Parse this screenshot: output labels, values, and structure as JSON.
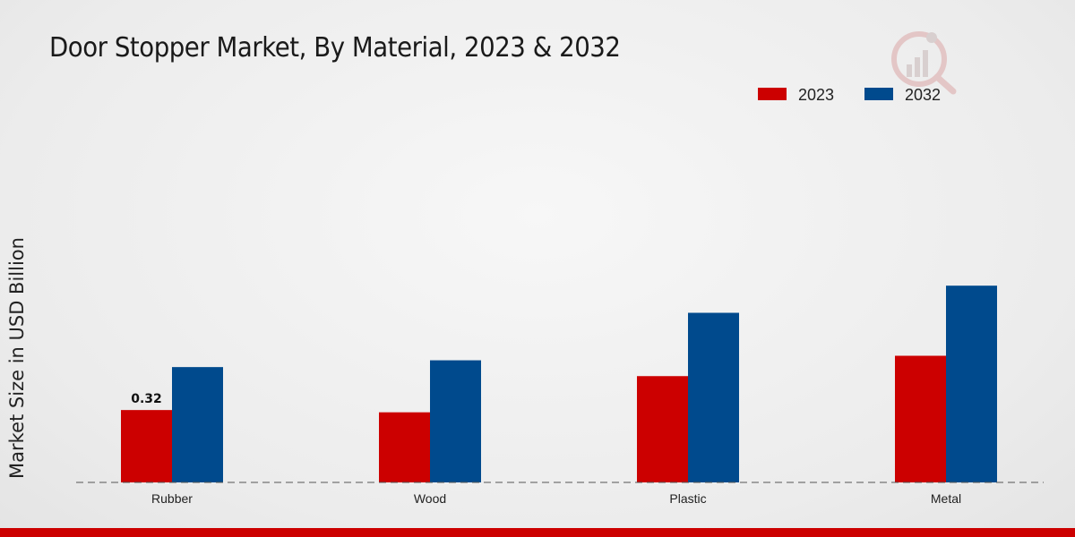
{
  "chart_data": {
    "type": "bar",
    "title": "Door Stopper Market, By Material, 2023 & 2032",
    "xlabel": "",
    "ylabel": "Market Size in USD Billion",
    "categories": [
      "Rubber",
      "Wood",
      "Plastic",
      "Metal"
    ],
    "series": [
      {
        "name": "2023",
        "color": "#cc0000",
        "values": [
          0.32,
          0.31,
          0.47,
          0.56
        ]
      },
      {
        "name": "2032",
        "color": "#004a8d",
        "values": [
          0.51,
          0.54,
          0.75,
          0.87
        ]
      }
    ],
    "ylim": [
      0,
      1.5
    ],
    "data_labels": [
      {
        "series": 0,
        "category": 0,
        "text": "0.32"
      }
    ],
    "legend_position": "top-right",
    "grid": false
  }
}
